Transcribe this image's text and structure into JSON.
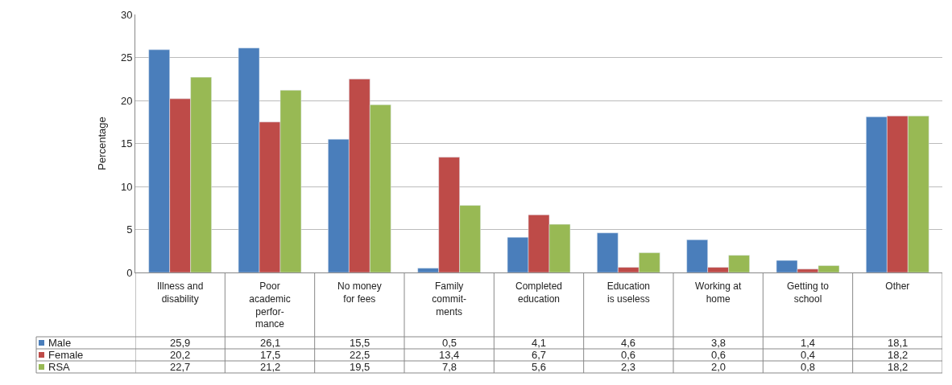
{
  "chart_data": {
    "type": "bar",
    "ylabel": "Percentage",
    "categories": [
      "Illness and\ndisability",
      "Poor\nacademic\nperfor-\nmance",
      "No money\nfor fees",
      "Family\ncommit-\nments",
      "Completed\neducation",
      "Education\nis useless",
      "Working at\nhome",
      "Getting to\nschool",
      "Other"
    ],
    "series": [
      {
        "name": "Male",
        "color": "#4a7ebb",
        "values": [
          25.9,
          26.1,
          15.5,
          0.5,
          4.1,
          4.6,
          3.8,
          1.4,
          18.1
        ],
        "value_labels": [
          "25,9",
          "26,1",
          "15,5",
          "0,5",
          "4,1",
          "4,6",
          "3,8",
          "1,4",
          "18,1"
        ]
      },
      {
        "name": "Female",
        "color": "#be4b48",
        "values": [
          20.2,
          17.5,
          22.5,
          13.4,
          6.7,
          0.6,
          0.6,
          0.4,
          18.2
        ],
        "value_labels": [
          "20,2",
          "17,5",
          "22,5",
          "13,4",
          "6,7",
          "0,6",
          "0,6",
          "0,4",
          "18,2"
        ]
      },
      {
        "name": "RSA",
        "color": "#98b954",
        "values": [
          22.7,
          21.2,
          19.5,
          7.8,
          5.6,
          2.3,
          2.0,
          0.8,
          18.2
        ],
        "value_labels": [
          "22,7",
          "21,2",
          "19,5",
          "7,8",
          "5,6",
          "2,3",
          "2,0",
          "0,8",
          "18,2"
        ]
      }
    ],
    "ylim": [
      0,
      30
    ],
    "yticks": [
      0,
      5,
      10,
      15,
      20,
      25,
      30
    ],
    "grid": "y",
    "legend": "bottom left"
  }
}
